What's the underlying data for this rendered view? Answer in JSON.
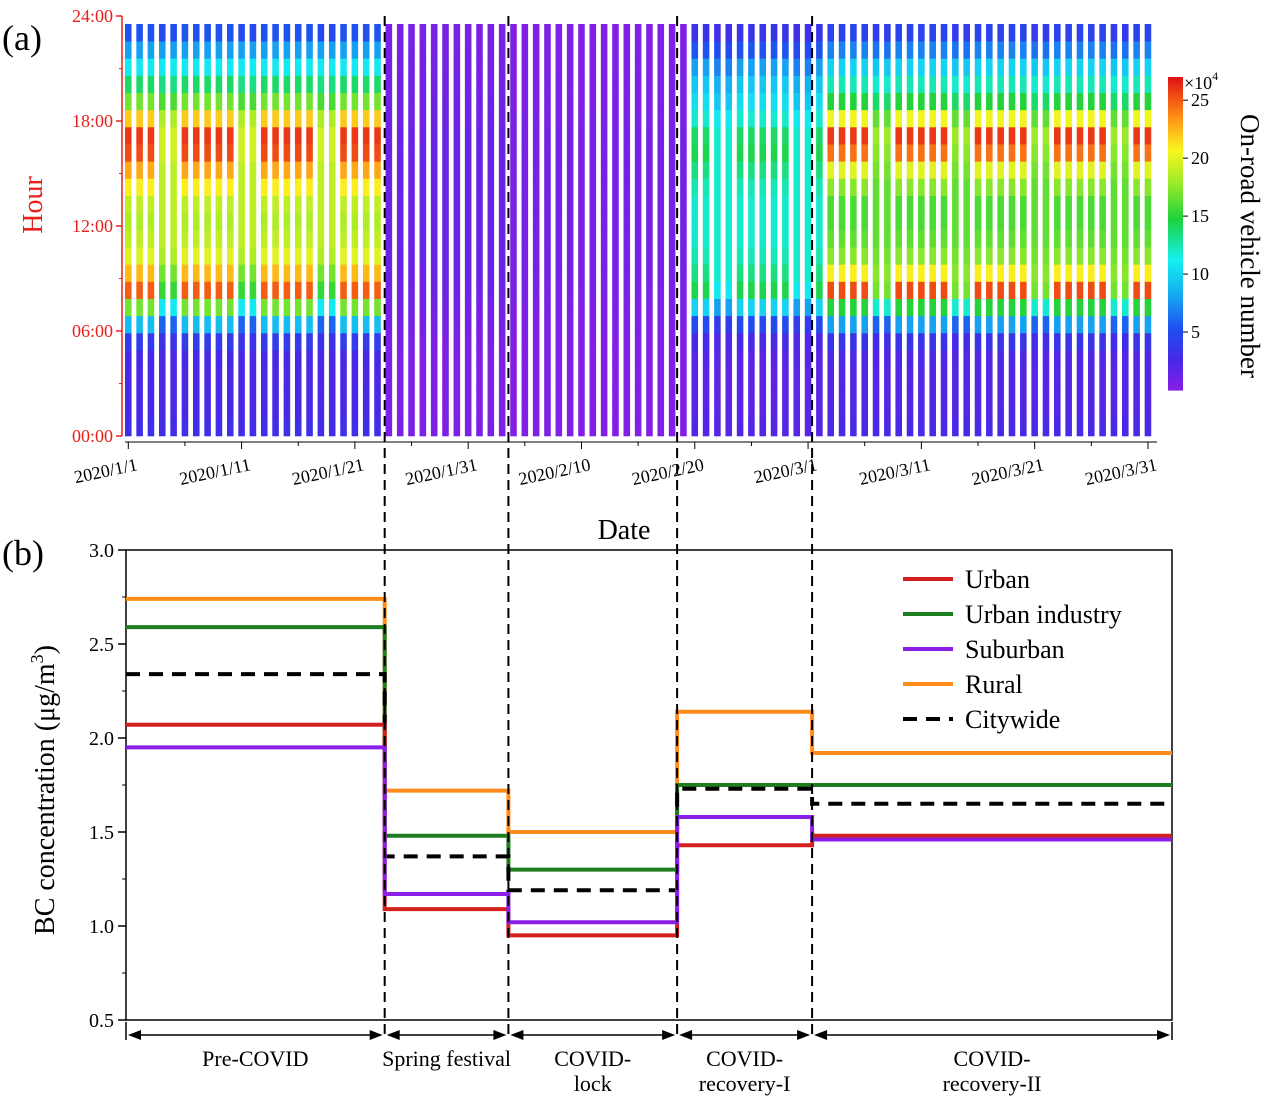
{
  "panel_a": {
    "label": "(a)",
    "chart_data": {
      "type": "heatmap",
      "xlabel": "Date",
      "ylabel": "Hour",
      "x_tick_labels": [
        "2020/1/1",
        "2020/1/11",
        "2020/1/21",
        "2020/1/31",
        "2020/2/10",
        "2020/2/20",
        "2020/3/1",
        "2020/3/11",
        "2020/3/21",
        "2020/3/31"
      ],
      "y_tick_labels": [
        "00:00",
        "06:00",
        "12:00",
        "18:00",
        "24:00"
      ],
      "colorbar_label": "On-road vehicle number",
      "colorbar_multiplier": "×10",
      "colorbar_exponent": "4",
      "colorbar_ticks": [
        5,
        10,
        15,
        20,
        25
      ],
      "colorbar_range": [
        0,
        27
      ],
      "hours": 24,
      "days": 91,
      "day_type_note": "weekday/weekend pattern per period",
      "profiles": {
        "pre_weekday": [
          3.2,
          2.8,
          2.6,
          2.5,
          2.7,
          4.0,
          9.0,
          17.0,
          25.0,
          22.5,
          20.0,
          19.0,
          18.5,
          19.0,
          21.0,
          23.0,
          25.5,
          26.0,
          22.0,
          17.0,
          14.0,
          11.0,
          8.0,
          5.5
        ],
        "pre_weekend": [
          3.0,
          2.6,
          2.4,
          2.4,
          2.5,
          3.4,
          6.0,
          11.0,
          15.5,
          17.0,
          18.5,
          19.0,
          19.0,
          19.0,
          19.0,
          19.0,
          19.5,
          19.5,
          18.5,
          16.0,
          13.5,
          11.0,
          8.0,
          5.0
        ],
        "spring": [
          0.6,
          0.5,
          0.5,
          0.5,
          0.5,
          0.6,
          0.8,
          1.0,
          1.2,
          1.3,
          1.4,
          1.4,
          1.4,
          1.4,
          1.4,
          1.4,
          1.4,
          1.3,
          1.2,
          1.1,
          1.0,
          0.9,
          0.8,
          0.7
        ],
        "lock": [
          0.4,
          0.4,
          0.4,
          0.4,
          0.4,
          0.4,
          0.5,
          0.6,
          0.7,
          0.8,
          0.8,
          0.8,
          0.8,
          0.8,
          0.8,
          0.8,
          0.8,
          0.8,
          0.7,
          0.6,
          0.6,
          0.5,
          0.5,
          0.4
        ],
        "rec1_weekday": [
          2.2,
          2.0,
          1.9,
          1.9,
          2.0,
          2.6,
          5.0,
          10.0,
          14.5,
          13.5,
          12.5,
          12.0,
          12.0,
          12.0,
          12.5,
          13.5,
          14.5,
          14.0,
          12.0,
          10.5,
          9.5,
          8.0,
          5.5,
          3.5
        ],
        "rec1_weekend": [
          2.0,
          1.9,
          1.8,
          1.8,
          1.9,
          2.3,
          4.0,
          8.0,
          11.0,
          12.0,
          12.0,
          12.0,
          12.0,
          12.0,
          12.0,
          12.0,
          12.0,
          12.0,
          11.0,
          9.5,
          8.5,
          7.0,
          5.0,
          3.2
        ],
        "rec2_weekday": [
          2.6,
          2.3,
          2.2,
          2.2,
          2.3,
          3.5,
          8.0,
          15.0,
          25.5,
          21.0,
          17.5,
          16.5,
          16.0,
          16.0,
          17.5,
          20.0,
          24.5,
          26.0,
          20.5,
          15.0,
          12.5,
          10.0,
          7.0,
          4.5
        ],
        "rec2_weekend": [
          2.5,
          2.2,
          2.1,
          2.1,
          2.2,
          3.0,
          6.0,
          12.0,
          17.0,
          17.5,
          17.0,
          16.5,
          16.5,
          16.5,
          16.5,
          17.0,
          17.5,
          18.0,
          16.5,
          14.0,
          12.0,
          9.5,
          6.5,
          4.0
        ]
      },
      "period_days": {
        "pre": [
          0,
          22
        ],
        "spring": [
          23,
          33
        ],
        "lock": [
          34,
          49
        ],
        "rec1": [
          50,
          61
        ],
        "rec2": [
          62,
          90
        ]
      }
    }
  },
  "panel_b": {
    "label": "(b)",
    "chart_data": {
      "type": "line",
      "ylabel_main": "BC concentration (μg/m",
      "ylabel_sup": "3",
      "ylabel_close": ")",
      "ylim": [
        0.5,
        3.0
      ],
      "y_ticks": [
        "0.5",
        "1.0",
        "1.5",
        "2.0",
        "2.5",
        "3.0"
      ],
      "periods": [
        {
          "start_day": 0,
          "end_day": 23,
          "label_lines": [
            "Pre-COVID"
          ]
        },
        {
          "start_day": 23,
          "end_day": 34,
          "label_lines": [
            "Spring festival"
          ]
        },
        {
          "start_day": 34,
          "end_day": 49,
          "label_lines": [
            "COVID-",
            "lock"
          ]
        },
        {
          "start_day": 49,
          "end_day": 61,
          "label_lines": [
            "COVID-",
            "recovery-I"
          ]
        },
        {
          "start_day": 61,
          "end_day": 93,
          "label_lines": [
            "COVID-",
            "recovery-II"
          ]
        }
      ],
      "series": [
        {
          "name": "Urban",
          "color": "#d41f1f",
          "dashed": false,
          "values": [
            2.07,
            1.09,
            0.95,
            1.43,
            1.48
          ]
        },
        {
          "name": "Urban industry",
          "color": "#1e7d1e",
          "dashed": false,
          "values": [
            2.59,
            1.48,
            1.3,
            1.75,
            1.75
          ]
        },
        {
          "name": "Suburban",
          "color": "#8b1ee6",
          "dashed": false,
          "values": [
            1.95,
            1.17,
            1.02,
            1.58,
            1.46
          ]
        },
        {
          "name": "Rural",
          "color": "#ff8c1a",
          "dashed": false,
          "values": [
            2.74,
            1.72,
            1.5,
            2.14,
            1.92
          ]
        },
        {
          "name": "Citywide",
          "color": "#000000",
          "dashed": true,
          "values": [
            2.34,
            1.37,
            1.19,
            1.73,
            1.65
          ]
        }
      ],
      "legend_position": "top-right"
    }
  },
  "colors": {
    "hour_axis": "#e8201c",
    "divider": "#000000"
  }
}
